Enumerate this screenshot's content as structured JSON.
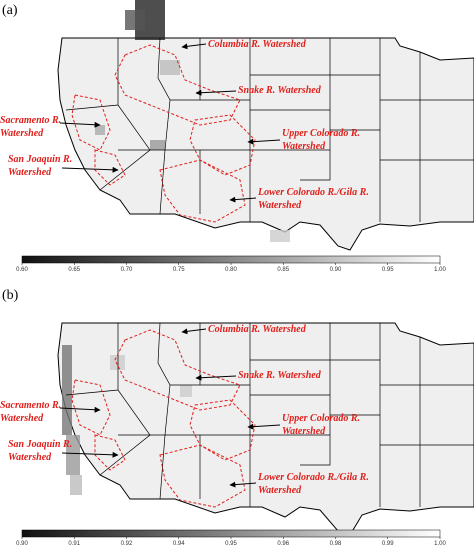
{
  "panels": [
    {
      "label": "(a)",
      "annotations": [
        {
          "lines": [
            "Columbia R. Watershed"
          ]
        },
        {
          "lines": [
            "Snake R. Watershed"
          ]
        },
        {
          "lines": [
            "Sacramento R.",
            "Watershed"
          ]
        },
        {
          "lines": [
            "Upper Colorado R.",
            "Watershed"
          ]
        },
        {
          "lines": [
            "San Joaquin R.",
            "Watershed"
          ]
        },
        {
          "lines": [
            "Lower Colorado R./Gila R.",
            "Watershed"
          ]
        }
      ],
      "colorbar": {
        "min": 0.6,
        "max": 1.0,
        "ticks": [
          {
            "value": 0.6,
            "label": "0.60"
          },
          {
            "value": 0.65,
            "label": "0.65"
          },
          {
            "value": 0.7,
            "label": "0.70"
          },
          {
            "value": 0.75,
            "label": "0.75"
          },
          {
            "value": 0.8,
            "label": "0.80"
          },
          {
            "value": 0.85,
            "label": "0.85"
          },
          {
            "value": 0.9,
            "label": "0.90"
          },
          {
            "value": 0.95,
            "label": "0.95"
          },
          {
            "value": 1.0,
            "label": "1.00"
          }
        ]
      }
    },
    {
      "label": "(b)",
      "annotations": [
        {
          "lines": [
            "Columbia R. Watershed"
          ]
        },
        {
          "lines": [
            "Snake R. Watershed"
          ]
        },
        {
          "lines": [
            "Sacramento R.",
            "Watershed"
          ]
        },
        {
          "lines": [
            "Upper Colorado R.",
            "Watershed"
          ]
        },
        {
          "lines": [
            "San Joaquin R.",
            "Watershed"
          ]
        },
        {
          "lines": [
            "Lower Colorado R./Gila R.",
            "Watershed"
          ]
        }
      ],
      "colorbar": {
        "min": 0.9,
        "max": 1.0,
        "ticks": [
          {
            "value": 0.9,
            "label": "0.90"
          },
          {
            "value": 0.9125,
            "label": "0.91"
          },
          {
            "value": 0.925,
            "label": "0.92"
          },
          {
            "value": 0.9375,
            "label": "0.94"
          },
          {
            "value": 0.95,
            "label": "0.95"
          },
          {
            "value": 0.9625,
            "label": "0.96"
          },
          {
            "value": 0.975,
            "label": "0.98"
          },
          {
            "value": 0.9875,
            "label": "0.99"
          },
          {
            "value": 1.0,
            "label": "1.00"
          }
        ]
      }
    }
  ]
}
